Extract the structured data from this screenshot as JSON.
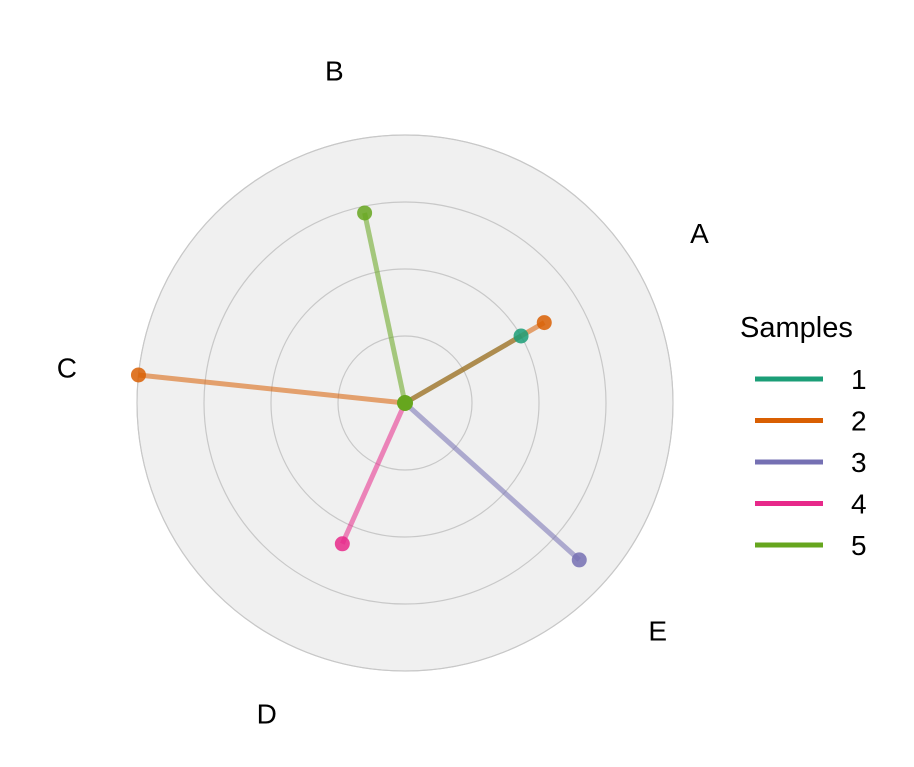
{
  "chart_data": {
    "type": "radar",
    "axes": [
      "A",
      "B",
      "C",
      "D",
      "E"
    ],
    "rlim": [
      0,
      4
    ],
    "rings": [
      1,
      2,
      3,
      4
    ],
    "grid": true,
    "legend": {
      "title": "Samples",
      "placement": "right"
    },
    "series": [
      {
        "name": "1",
        "color": "#1b9e77",
        "segments": [
          {
            "axis": "A",
            "value": 2.0
          }
        ]
      },
      {
        "name": "2",
        "color": "#d95f02",
        "segments": [
          {
            "axis": "A",
            "value": 2.4
          },
          {
            "axis": "C",
            "value": 4.0
          }
        ]
      },
      {
        "name": "3",
        "color": "#7570b3",
        "segments": [
          {
            "axis": "E",
            "value": 3.5
          }
        ]
      },
      {
        "name": "4",
        "color": "#e7298a",
        "segments": [
          {
            "axis": "D",
            "value": 2.3
          }
        ]
      },
      {
        "name": "5",
        "color": "#66a61e",
        "segments": [
          {
            "axis": "B",
            "value": 2.9
          }
        ]
      }
    ]
  }
}
